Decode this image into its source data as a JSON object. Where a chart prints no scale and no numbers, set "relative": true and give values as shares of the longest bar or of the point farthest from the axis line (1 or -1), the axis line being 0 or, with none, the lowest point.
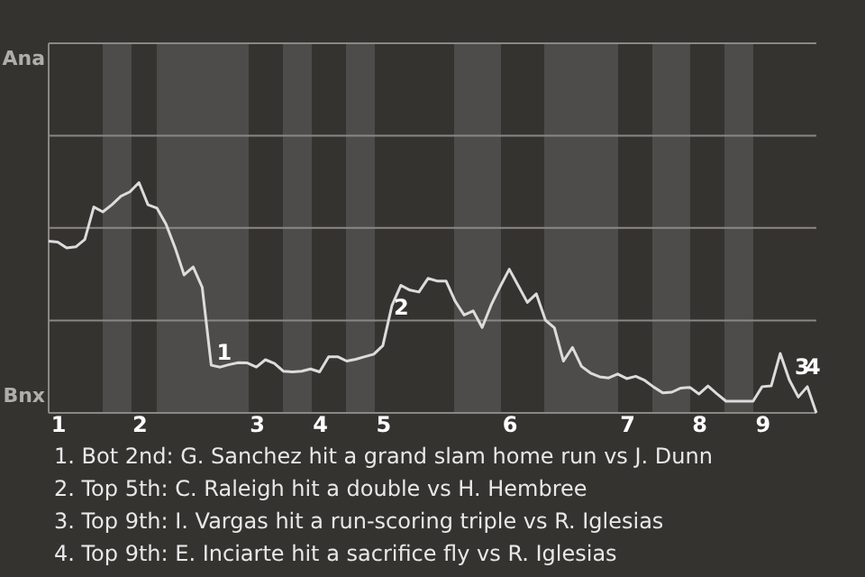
{
  "chart_data": {
    "type": "line",
    "relative": true,
    "categories": [
      null,
      "1",
      null,
      null,
      null,
      null,
      null,
      null,
      null,
      null,
      "2",
      null,
      null,
      null,
      null,
      null,
      null,
      null,
      null,
      null,
      null,
      null,
      null,
      "3",
      null,
      null,
      null,
      null,
      null,
      null,
      "4",
      null,
      null,
      null,
      null,
      null,
      null,
      "5",
      null,
      null,
      null,
      null,
      null,
      null,
      null,
      null,
      null,
      null,
      null,
      null,
      null,
      "6",
      null,
      null,
      null,
      null,
      null,
      null,
      null,
      null,
      null,
      null,
      null,
      null,
      "7",
      null,
      null,
      null,
      null,
      null,
      null,
      null,
      "8",
      null,
      null,
      null,
      null,
      null,
      null,
      "9",
      null,
      null,
      null,
      null,
      null,
      null
    ],
    "series": [
      {
        "color": "#dcdcdc",
        "values": [
          0.746,
          0.742,
          0.716,
          0.721,
          0.753,
          0.894,
          0.873,
          0.904,
          0.941,
          0.96,
          1,
          0.904,
          0.889,
          0.819,
          0.717,
          0.599,
          0.634,
          0.546,
          0.207,
          0.199,
          0.21,
          0.218,
          0.217,
          0.199,
          0.231,
          0.215,
          0.181,
          0.178,
          0.181,
          0.191,
          0.178,
          0.244,
          0.244,
          0.225,
          0.233,
          0.244,
          0.255,
          0.292,
          0.465,
          0.554,
          0.533,
          0.525,
          0.584,
          0.573,
          0.573,
          0.486,
          0.425,
          0.443,
          0.371,
          0.469,
          0.549,
          0.624,
          0.552,
          0.48,
          0.517,
          0.403,
          0.369,
          0.225,
          0.284,
          0.202,
          0.173,
          0.157,
          0.152,
          0.169,
          0.149,
          0.159,
          0.141,
          0.112,
          0.087,
          0.09,
          0.108,
          0.111,
          0.082,
          0.117,
          0.083,
          0.051,
          0.051,
          0.051,
          0.051,
          0.114,
          0.117,
          0.258,
          0.144,
          0.069,
          0.114,
          0
        ]
      }
    ],
    "ref_lines": [
      {
        "axis": "y",
        "value": 0.401,
        "color": "#8a8885"
      },
      {
        "axis": "y",
        "value": 0.803,
        "color": "#8a8885"
      },
      {
        "axis": "y",
        "value": 1.204,
        "color": "#8a8885"
      }
    ],
    "annotations": [
      "Ana",
      "Bnx",
      {
        "text": "1",
        "y": 0.207
      },
      {
        "text": "2",
        "y": 0.465
      },
      {
        "text": "3",
        "y": 0.144
      },
      {
        "text": "4",
        "y": 0.144
      },
      "1. Bot 2nd: G. Sanchez hit a grand slam home run vs J. Dunn",
      "2. Top 5th: C. Raleigh hit a double vs H. Hembree",
      "3. Top 9th: I. Vargas hit a run-scoring triple vs R. Iglesias",
      "4. Top 9th: E. Inciarte hit a sacrifice fly vs R. Iglesias"
    ]
  }
}
